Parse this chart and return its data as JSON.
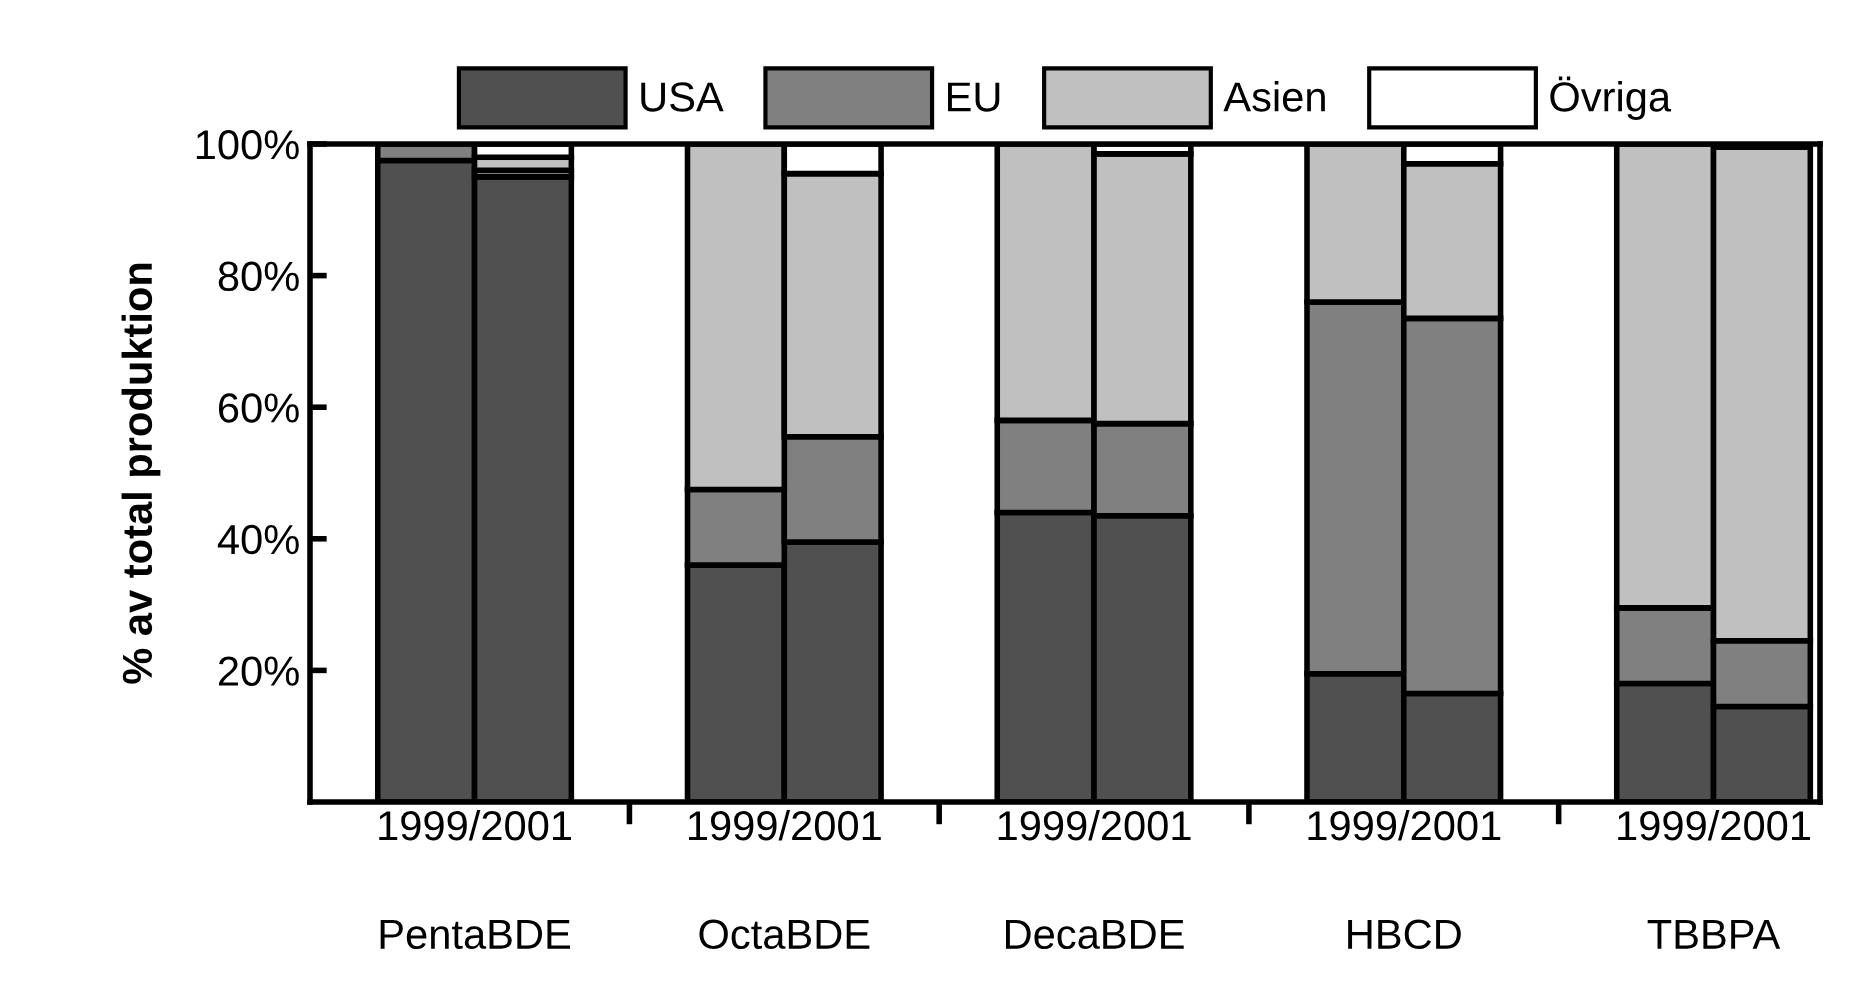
{
  "chart_data": {
    "type": "bar",
    "stacked": true,
    "ylabel": "% av total produktion",
    "categories": [
      null,
      null,
      null,
      null,
      null,
      null,
      null,
      null,
      null,
      null
    ],
    "series": [
      {
        "name": "USA",
        "color": "#505050",
        "values": [
          97.5,
          95,
          36,
          39.5,
          44,
          43.5,
          19.5,
          16.5,
          18,
          14.5
        ]
      },
      {
        "name": "EU",
        "color": "#808080",
        "values": [
          2.5,
          1,
          11.5,
          16,
          14,
          14,
          56.5,
          57,
          11.5,
          10
        ]
      },
      {
        "name": "Asien",
        "color": "#c0c0c0",
        "values": [
          null,
          2,
          52.5,
          40,
          42,
          41,
          24,
          23.5,
          70.5,
          75
        ]
      },
      {
        "name": "Övriga",
        "color": "#ffffff",
        "values": [
          null,
          2,
          null,
          4.5,
          null,
          1.5,
          null,
          3,
          null,
          null
        ]
      }
    ],
    "ylim": [
      0,
      100
    ],
    "yticks": [
      {
        "value": 20,
        "label": "20%"
      },
      {
        "value": 40,
        "label": "40%"
      },
      {
        "value": 60,
        "label": "60%"
      },
      {
        "value": 80,
        "label": "80%"
      },
      {
        "value": 100,
        "label": "100%"
      }
    ],
    "legend": "top",
    "annotations": [
      "1999/2001",
      "1999/2001",
      "1999/2001",
      "1999/2001",
      "1999/2001",
      "PentaBDE",
      "OctaBDE",
      "DecaBDE",
      "HBCD",
      "TBBPA"
    ]
  }
}
